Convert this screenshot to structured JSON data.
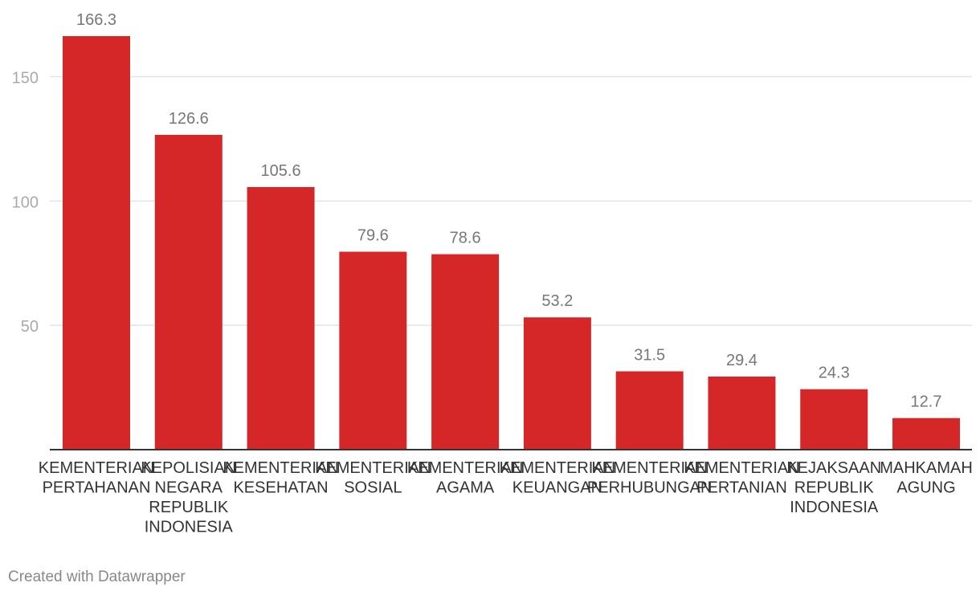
{
  "chart_data": {
    "type": "bar",
    "categories": [
      [
        "KEMENTERIAN",
        "PERTAHANAN"
      ],
      [
        "KEPOLISIAN",
        "NEGARA",
        "REPUBLIK",
        "INDONESIA"
      ],
      [
        "KEMENTERIAN",
        "KESEHATAN"
      ],
      [
        "KEMENTERIAN",
        "SOSIAL"
      ],
      [
        "KEMENTERIAN",
        "AGAMA"
      ],
      [
        "KEMENTERIAN",
        "KEUANGAN"
      ],
      [
        "KEMENTERIAN",
        "PERHUBUNGAN"
      ],
      [
        "KEMENTERIAN",
        "PERTANIAN"
      ],
      [
        "KEJAKSAAN",
        "REPUBLIK",
        "INDONESIA"
      ],
      [
        "MAHKAMAH",
        "AGUNG"
      ]
    ],
    "values": [
      166.3,
      126.6,
      105.6,
      79.6,
      78.6,
      53.2,
      31.5,
      29.4,
      24.3,
      12.7
    ],
    "value_labels": [
      "166.3",
      "126.6",
      "105.6",
      "79.6",
      "78.6",
      "53.2",
      "31.5",
      "29.4",
      "24.3",
      "12.7"
    ],
    "yticks": [
      50,
      100,
      150
    ],
    "ylim": [
      0,
      166.3
    ],
    "title": "",
    "xlabel": "",
    "ylabel": "",
    "grid": true,
    "colors": {
      "bar": "#d62728",
      "grid": "#e4e4e4",
      "axis": "#333333",
      "label": "#777777",
      "tick": "#aaaaaa",
      "category": "#333333"
    }
  },
  "footer": {
    "credit": "Created with Datawrapper"
  }
}
